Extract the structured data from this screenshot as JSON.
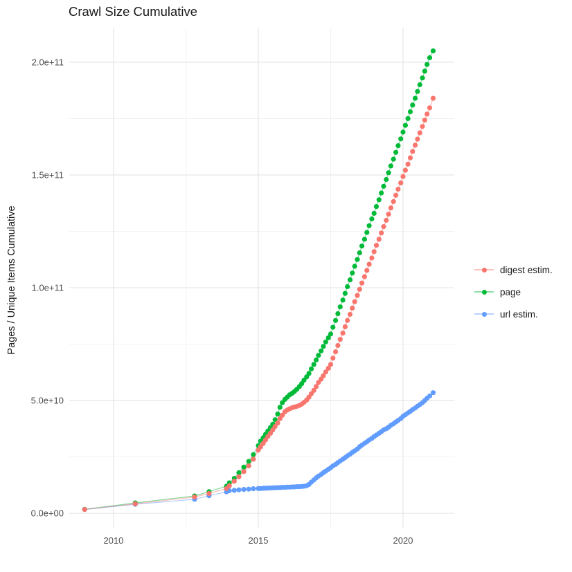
{
  "chart_data": {
    "type": "line",
    "style": "points connected by thin semi-transparent lines (ggplot-like, theme_minimal)",
    "title": "Crawl Size Cumulative",
    "xlabel": "",
    "ylabel": "Pages / Unique Items Cumulative",
    "legend_position": "right",
    "grid": "on",
    "grid_major_color": "#e3e3e3",
    "grid_minor_color": "#efefef",
    "background_color": "#ffffff",
    "xlim": [
      2008.47,
      2021.77
    ],
    "ylim_billions": [
      -6.4,
      215.3
    ],
    "x_ticks": [
      {
        "value": 2010,
        "label": "2010"
      },
      {
        "value": 2015,
        "label": "2015"
      },
      {
        "value": 2020,
        "label": "2020"
      }
    ],
    "x_minor": [
      2012.5,
      2017.5
    ],
    "y_ticks": [
      {
        "value": 0,
        "label": "0.0e+00"
      },
      {
        "value": 50,
        "label": "5.0e+10"
      },
      {
        "value": 100,
        "label": "1.0e+11"
      },
      {
        "value": 150,
        "label": "1.5e+11"
      },
      {
        "value": 200,
        "label": "2.0e+11"
      }
    ],
    "y_minor": [
      25,
      75,
      125,
      175
    ],
    "value_unit": "billions (1e9) of pages / unique items, cumulative",
    "x": [
      2009.0,
      2010.75,
      2012.8,
      2013.3,
      2013.9,
      2014.0,
      2014.17,
      2014.33,
      2014.5,
      2014.67,
      2014.83,
      2015.0,
      2015.08,
      2015.17,
      2015.25,
      2015.33,
      2015.42,
      2015.5,
      2015.58,
      2015.67,
      2015.75,
      2015.83,
      2015.92,
      2016.0,
      2016.08,
      2016.17,
      2016.25,
      2016.33,
      2016.42,
      2016.5,
      2016.58,
      2016.67,
      2016.75,
      2016.83,
      2016.92,
      2017.0,
      2017.08,
      2017.17,
      2017.25,
      2017.33,
      2017.42,
      2017.5,
      2017.58,
      2017.67,
      2017.75,
      2017.83,
      2017.92,
      2018.0,
      2018.08,
      2018.17,
      2018.25,
      2018.33,
      2018.42,
      2018.5,
      2018.58,
      2018.67,
      2018.75,
      2018.83,
      2018.92,
      2019.0,
      2019.08,
      2019.17,
      2019.25,
      2019.33,
      2019.42,
      2019.5,
      2019.58,
      2019.67,
      2019.75,
      2019.83,
      2019.92,
      2020.0,
      2020.08,
      2020.17,
      2020.25,
      2020.33,
      2020.42,
      2020.5,
      2020.58,
      2020.67,
      2020.75,
      2020.83,
      2020.92,
      2021.04
    ],
    "series": [
      {
        "name": "digest estim.",
        "color": "#F8766D",
        "values": [
          1.7,
          4.2,
          7.2,
          8.8,
          11,
          12.2,
          14.2,
          16.2,
          18.5,
          21,
          24,
          28,
          29.5,
          31,
          32.5,
          34,
          35.5,
          37,
          38.5,
          40,
          42,
          43.5,
          45,
          45.8,
          46.3,
          46.8,
          47.1,
          47.4,
          47.8,
          48.4,
          49.2,
          50.2,
          51.5,
          53,
          54.5,
          56.2,
          58,
          59.5,
          61,
          62.7,
          64.3,
          66,
          68.8,
          71.6,
          74.4,
          77.1,
          79.9,
          82.7,
          85.5,
          88.2,
          91,
          93.8,
          96.6,
          99.3,
          102.1,
          104.9,
          107.7,
          110.4,
          113.2,
          116,
          118.8,
          121.5,
          124.3,
          127.1,
          129.9,
          132.6,
          135.4,
          138.2,
          141,
          143.7,
          146.5,
          149.3,
          152.1,
          154.8,
          157.6,
          160.4,
          163.2,
          165.9,
          168.7,
          171.5,
          174.3,
          177,
          179.8,
          184
        ]
      },
      {
        "name": "page",
        "color": "#00BA38",
        "values": [
          1.8,
          4.6,
          7.7,
          9.6,
          12,
          13.5,
          15.5,
          18,
          20.5,
          23,
          26,
          30,
          32,
          33.5,
          35,
          36.5,
          38,
          39.5,
          41.5,
          44,
          47,
          49,
          50.5,
          51.5,
          52.5,
          53.2,
          54,
          55,
          56.2,
          57.5,
          59,
          60.5,
          62,
          64,
          66,
          68,
          70,
          72,
          74,
          76,
          77.8,
          79.5,
          82.5,
          85.5,
          88.5,
          91.5,
          94.5,
          97.5,
          100.5,
          103.5,
          106.5,
          109.5,
          112.5,
          115.5,
          118.5,
          121.5,
          124.5,
          127.5,
          130.5,
          133,
          136,
          139,
          142,
          145,
          148,
          151,
          154,
          157,
          160,
          163,
          166,
          169,
          172,
          175,
          178,
          181,
          184,
          187,
          190,
          193,
          196,
          199,
          202,
          205
        ]
      },
      {
        "name": "url estim.",
        "color": "#619CFF",
        "values": [
          1.7,
          4.0,
          6.2,
          7.8,
          9.5,
          10,
          10.2,
          10.4,
          10.6,
          10.7,
          10.9,
          11,
          11,
          11.1,
          11.1,
          11.2,
          11.2,
          11.3,
          11.3,
          11.4,
          11.4,
          11.5,
          11.5,
          11.6,
          11.6,
          11.7,
          11.7,
          11.8,
          11.8,
          11.9,
          12,
          12.2,
          12.8,
          13.8,
          14.8,
          15.7,
          16.5,
          17.2,
          18,
          18.7,
          19.5,
          20.2,
          21,
          21.7,
          22.5,
          23.2,
          24,
          24.7,
          25.5,
          26.2,
          27,
          27.7,
          28.5,
          29.5,
          30.2,
          31,
          31.7,
          32.5,
          33.2,
          34,
          34.7,
          35.5,
          36.2,
          37,
          37.5,
          38.2,
          39,
          39.7,
          40.5,
          41.2,
          42,
          43,
          43.7,
          44.5,
          45.2,
          46,
          46.7,
          47.5,
          48.2,
          49,
          50,
          51,
          52,
          53.5
        ]
      }
    ]
  }
}
